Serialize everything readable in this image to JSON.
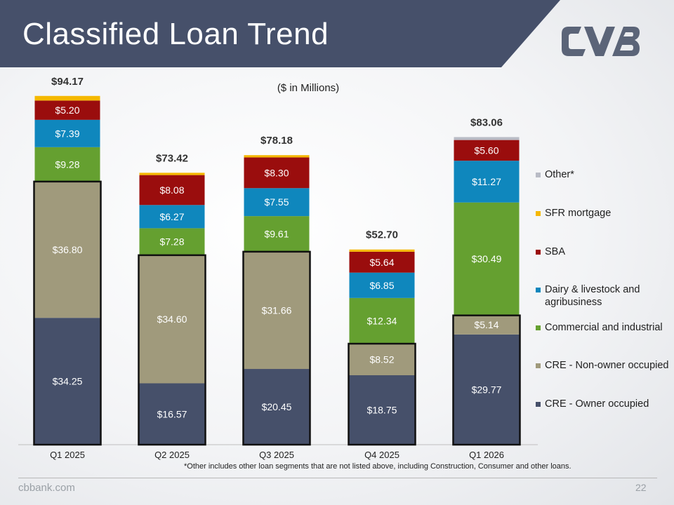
{
  "slide": {
    "title": "Classified Loan Trend",
    "footnote": "*Other includes other loan segments that are not listed above, including Construction, Consumer and other loans.",
    "site": "cbbank.com",
    "page_number": "22",
    "banner_color": "#46506a"
  },
  "chart_data": {
    "type": "bar",
    "stacked": true,
    "subtitle": "($ in Millions)",
    "categories": [
      "Q1 2025",
      "Q2 2025",
      "Q3 2025",
      "Q4 2025",
      "Q1 2026"
    ],
    "totals": [
      "$94.17",
      "$73.42",
      "$78.18",
      "$52.70",
      "$83.06"
    ],
    "series": [
      {
        "name": "CRE - Owner occupied",
        "color": "#46506a",
        "label_color": "#ffffff",
        "values": [
          34.25,
          16.57,
          20.45,
          18.75,
          29.77
        ],
        "labels": [
          "$34.25",
          "$16.57",
          "$20.45",
          "$18.75",
          "$29.77"
        ]
      },
      {
        "name": "CRE - Non-owner occupied",
        "color": "#a09a7c",
        "label_color": "#ffffff",
        "values": [
          36.8,
          34.6,
          31.66,
          8.52,
          5.14
        ],
        "labels": [
          "$36.80",
          "$34.60",
          "$31.66",
          "$8.52",
          "$5.14"
        ]
      },
      {
        "name": "Commercial and industrial",
        "color": "#65a030",
        "label_color": "#ffffff",
        "values": [
          9.28,
          7.28,
          9.61,
          12.34,
          30.49
        ],
        "labels": [
          "$9.28",
          "$7.28",
          "$9.61",
          "$12.34",
          "$30.49"
        ]
      },
      {
        "name": "Dairy & livestock and agribusiness",
        "color": "#0f87bd",
        "label_color": "#ffffff",
        "values": [
          7.39,
          6.27,
          7.55,
          6.85,
          11.27
        ],
        "labels": [
          "$7.39",
          "$6.27",
          "$7.55",
          "$6.85",
          "$11.27"
        ]
      },
      {
        "name": "SBA",
        "color": "#9a0d0d",
        "label_color": "#ffffff",
        "values": [
          5.2,
          8.08,
          8.3,
          5.64,
          5.6
        ],
        "labels": [
          "$5.20",
          "$8.08",
          "$8.30",
          "$5.64",
          "$5.60"
        ]
      },
      {
        "name": "SFR mortgage",
        "color": "#f5b800",
        "values": [
          1.25,
          0.62,
          0.61,
          0.6,
          0.0
        ]
      },
      {
        "name": "Other*",
        "color": "#b9bcc6",
        "values": [
          0.0,
          0.0,
          0.0,
          0.0,
          0.79
        ]
      }
    ],
    "legend_order": [
      "Other*",
      "SFR mortgage",
      "SBA",
      "Dairy & livestock and agribusiness",
      "Commercial and industrial",
      "CRE - Non-owner occupied",
      "CRE - Owner occupied"
    ],
    "outlined_series": [
      "CRE - Owner occupied",
      "CRE - Non-owner occupied"
    ],
    "ylim": [
      0,
      100
    ],
    "legend_position": "right"
  }
}
